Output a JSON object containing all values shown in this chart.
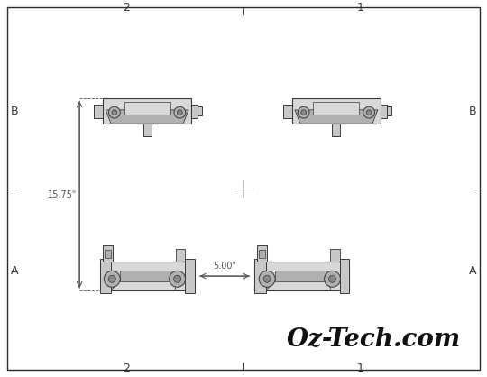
{
  "bg_color": "#ffffff",
  "border_color": "#2a2a2a",
  "line_color": "#3a3a3a",
  "dim_color": "#555555",
  "bracket_fill": "#c8c8c8",
  "bracket_fill2": "#b0b0b0",
  "bracket_fill3": "#d8d8d8",
  "title": "Oz-Tech.com",
  "title_fontsize": 20,
  "label_fontsize": 9,
  "dim_fontsize": 7,
  "border_labels": {
    "top_left": "2",
    "top_right": "1",
    "bottom_left": "2",
    "bottom_right": "1",
    "left_top": "B",
    "left_bottom": "A",
    "right_top": "B",
    "right_bottom": "A"
  },
  "fig_width": 5.4,
  "fig_height": 4.18,
  "dpi": 100,
  "dim_vertical": "15.75\"",
  "dim_horizontal": "5.00\""
}
